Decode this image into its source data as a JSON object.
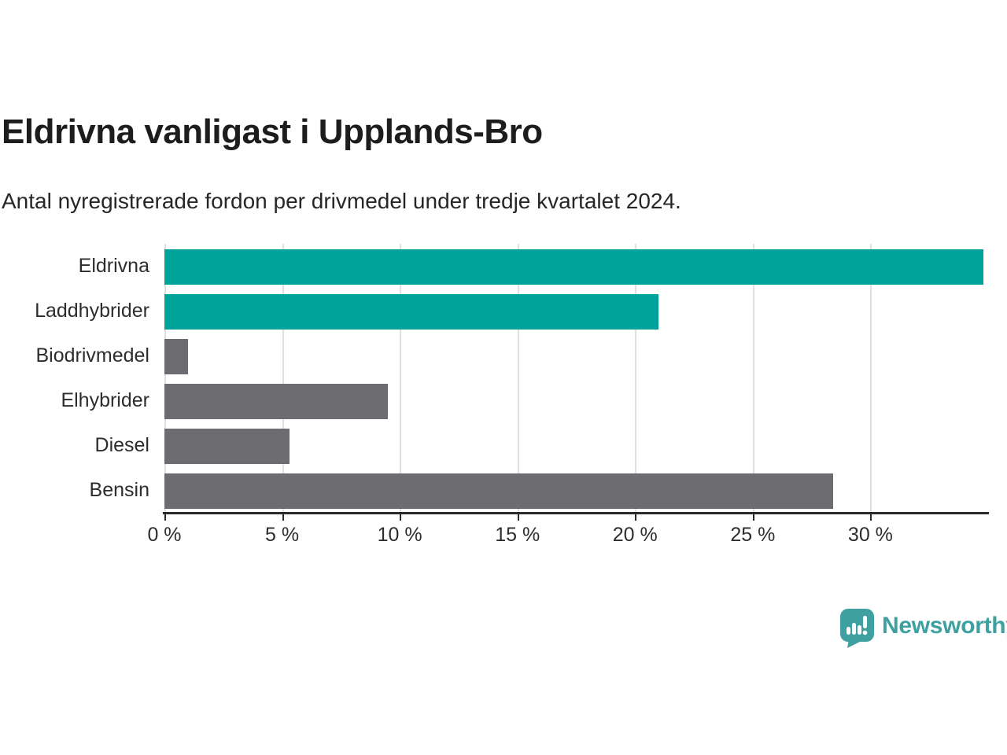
{
  "title": "Eldrivna vanligast i Upplands-Bro",
  "subtitle": "Antal nyregistrerade fordon per drivmedel under tredje kvartalet 2024.",
  "colors": {
    "accent_teal": "#00a39a",
    "bar_gray": "#6d6c71",
    "logo_teal": "#3fa0a1",
    "grid_line": "#e0e0e0",
    "axis_line": "#2b2b2b",
    "title_text": "#1d1d1b"
  },
  "chart_data": {
    "type": "bar",
    "orientation": "horizontal",
    "title": "Eldrivna vanligast i Upplands-Bro",
    "subtitle": "Antal nyregistrerade fordon per drivmedel under tredje kvartalet 2024.",
    "categories": [
      "Eldrivna",
      "Laddhybrider",
      "Biodrivmedel",
      "Elhybrider",
      "Diesel",
      "Bensin"
    ],
    "values": [
      34.8,
      21.0,
      1.0,
      9.5,
      5.3,
      28.4
    ],
    "bar_colors": [
      "#00a39a",
      "#00a39a",
      "#6d6c71",
      "#6d6c71",
      "#6d6c71",
      "#6d6c71"
    ],
    "unit": "%",
    "xlabel": "",
    "ylabel": "",
    "xlim": [
      0,
      35
    ],
    "x_tick_values": [
      0,
      5,
      10,
      15,
      20,
      25,
      30
    ],
    "x_tick_labels": [
      "0 %",
      "5 %",
      "10 %",
      "15 %",
      "20 %",
      "25 %",
      "30 %"
    ],
    "grid": true,
    "legend": false
  },
  "footer": {
    "brand": "Newsworthy"
  }
}
